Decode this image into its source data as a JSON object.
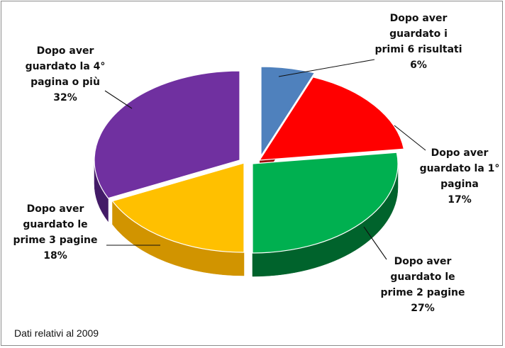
{
  "chart_data": {
    "type": "pie",
    "title": "",
    "values": [
      6,
      17,
      27,
      18,
      32
    ],
    "value_format": "{value}%",
    "slices": [
      {
        "label_lines": [
          "Dopo aver",
          "guardato i",
          "primi 6 risultati"
        ],
        "value": 6,
        "percent_text": "6%",
        "color": "#4f81bd",
        "side_color": "#2f5e96"
      },
      {
        "label_lines": [
          "Dopo aver",
          "guardato la 1°",
          "pagina"
        ],
        "value": 17,
        "percent_text": "17%",
        "color": "#ff0000",
        "side_color": "#9c0000"
      },
      {
        "label_lines": [
          "Dopo aver",
          "guardato le",
          "prime 2 pagine"
        ],
        "value": 27,
        "percent_text": "27%",
        "color": "#00b050",
        "side_color": "#00632c"
      },
      {
        "label_lines": [
          "Dopo aver",
          "guardato le",
          "prime 3 pagine"
        ],
        "value": 18,
        "percent_text": "18%",
        "color": "#ffc000",
        "side_color": "#d19400"
      },
      {
        "label_lines": [
          "Dopo aver",
          "guardato la 4°",
          "pagina o più"
        ],
        "value": 32,
        "percent_text": "32%",
        "color": "#7030a0",
        "side_color": "#431b67"
      }
    ],
    "legend": "none",
    "note": "Dati relativi al 2009"
  }
}
